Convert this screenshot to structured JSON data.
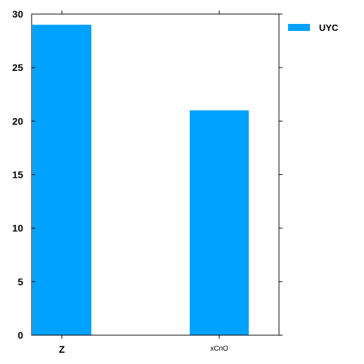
{
  "chart_data": {
    "type": "bar",
    "categories": [
      "Z",
      "xCnO"
    ],
    "series": [
      {
        "name": "UYC",
        "values": [
          29,
          21
        ],
        "color": "#00a2ff"
      }
    ],
    "title": "",
    "xlabel": "",
    "ylabel": "",
    "ylim": [
      0,
      30
    ],
    "yticks": [
      0,
      5,
      10,
      15,
      20,
      25,
      30
    ],
    "grid": false,
    "legend_position": "top-right, outside plot"
  }
}
